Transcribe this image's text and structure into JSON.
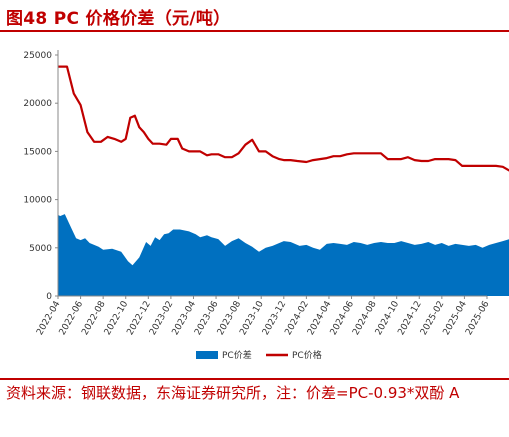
{
  "title": "图48  PC 价格价差（元/吨）",
  "source": "资料来源：钢联数据，东海证券研究所，注：价差=PC-0.93*双酚 A",
  "chart_data": {
    "type": "line+area",
    "title": "图48  PC 价格价差（元/吨）",
    "ylim": [
      0,
      25000
    ],
    "y_ticks": [
      0,
      5000,
      10000,
      15000,
      20000,
      25000
    ],
    "x_ticks": [
      "2022-04",
      "2022-06",
      "2022-08",
      "2022-10",
      "2022-12",
      "2023-02",
      "2023-04",
      "2023-06",
      "2023-08",
      "2023-10",
      "2023-12",
      "2024-02",
      "2024-04",
      "2024-06",
      "2024-08",
      "2024-10",
      "2024-12",
      "2025-02",
      "2025-04",
      "2025-06"
    ],
    "legend": {
      "placement": "bottom",
      "entries": [
        "PC价差",
        "PC价格"
      ]
    },
    "grid": false,
    "series": [
      {
        "name": "PC价差",
        "type": "area",
        "color": "#0070c0",
        "x": [
          0,
          0.1,
          0.3,
          0.6,
          0.8,
          1.0,
          1.2,
          1.4,
          1.6,
          1.8,
          2.0,
          2.4,
          2.8,
          3.1,
          3.3,
          3.6,
          3.9,
          4.1,
          4.3,
          4.5,
          4.7,
          4.9,
          5.1,
          5.4,
          5.8,
          6.1,
          6.3,
          6.6,
          6.8,
          7.1,
          7.4,
          7.7,
          8.0,
          8.3,
          8.6,
          8.9,
          9.2,
          9.5,
          9.8,
          10.0,
          10.3,
          10.7,
          11.0,
          11.3,
          11.6,
          11.9,
          12.2,
          12.5,
          12.8,
          13.1,
          13.4,
          13.7,
          14.0,
          14.3,
          14.6,
          14.9,
          15.2,
          15.5,
          15.8,
          16.1,
          16.4,
          16.7,
          17.0,
          17.3,
          17.6,
          17.9,
          18.2,
          18.5,
          18.8,
          19.1,
          19.4,
          19.7,
          20.0
        ],
        "values": [
          8400,
          8300,
          8500,
          7000,
          6000,
          5800,
          6000,
          5500,
          5300,
          5100,
          4800,
          4900,
          4600,
          3600,
          3200,
          4000,
          5600,
          5200,
          6100,
          5800,
          6400,
          6500,
          6900,
          6900,
          6700,
          6400,
          6100,
          6300,
          6100,
          5900,
          5200,
          5700,
          6000,
          5500,
          5100,
          4600,
          5000,
          5200,
          5500,
          5700,
          5600,
          5200,
          5300,
          5000,
          4800,
          5400,
          5500,
          5400,
          5300,
          5600,
          5500,
          5300,
          5500,
          5600,
          5500,
          5500,
          5700,
          5500,
          5300,
          5400,
          5600,
          5300,
          5500,
          5200,
          5400,
          5300,
          5200,
          5300,
          5000,
          5300,
          5500,
          5700,
          5900
        ]
      },
      {
        "name": "PC价格",
        "type": "line",
        "color": "#c00000",
        "x": [
          0,
          0.4,
          0.7,
          1.0,
          1.3,
          1.6,
          1.9,
          2.2,
          2.5,
          2.8,
          3.0,
          3.2,
          3.4,
          3.6,
          3.8,
          4.0,
          4.2,
          4.5,
          4.8,
          5.0,
          5.3,
          5.5,
          5.8,
          6.0,
          6.3,
          6.6,
          6.8,
          7.1,
          7.4,
          7.7,
          8.0,
          8.3,
          8.6,
          8.9,
          9.2,
          9.5,
          9.8,
          10.0,
          10.3,
          10.6,
          11.0,
          11.3,
          11.6,
          11.9,
          12.2,
          12.5,
          12.8,
          13.1,
          13.4,
          13.7,
          14.0,
          14.3,
          14.6,
          14.9,
          15.2,
          15.5,
          15.8,
          16.1,
          16.4,
          16.7,
          17.0,
          17.3,
          17.6,
          17.9,
          18.2,
          18.5,
          18.8,
          19.1,
          19.4,
          19.7,
          20.0
        ],
        "values": [
          23800,
          23800,
          21000,
          19800,
          17000,
          16000,
          16000,
          16500,
          16300,
          16000,
          16300,
          18500,
          18700,
          17500,
          17000,
          16300,
          15800,
          15800,
          15700,
          16300,
          16300,
          15300,
          15000,
          15000,
          15000,
          14600,
          14700,
          14700,
          14400,
          14400,
          14800,
          15700,
          16200,
          15000,
          15000,
          14500,
          14200,
          14100,
          14100,
          14000,
          13900,
          14100,
          14200,
          14300,
          14500,
          14500,
          14700,
          14800,
          14800,
          14800,
          14800,
          14800,
          14200,
          14200,
          14200,
          14400,
          14100,
          14000,
          14000,
          14200,
          14200,
          14200,
          14100,
          13500,
          13500,
          13500,
          13500,
          13500,
          13500,
          13400,
          13000
        ]
      }
    ]
  }
}
